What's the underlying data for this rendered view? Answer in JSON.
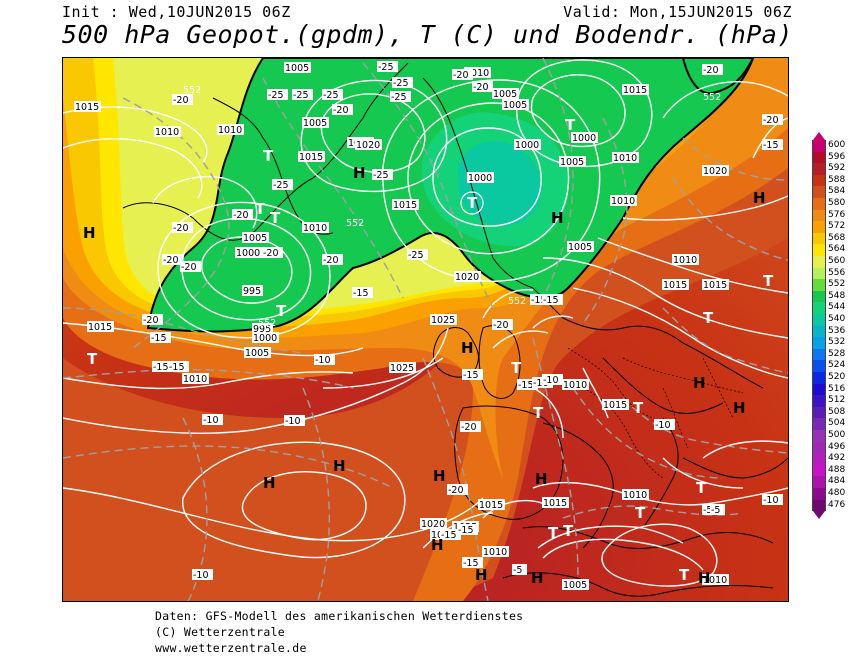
{
  "header": {
    "init": "Init : Wed,10JUN2015 06Z",
    "valid": "Valid: Mon,15JUN2015 06Z",
    "title": "500 hPa Geopot.(gpdm), T (C) und Bodendr. (hPa)"
  },
  "legend": {
    "values": [
      "600",
      "596",
      "592",
      "588",
      "584",
      "580",
      "576",
      "572",
      "568",
      "564",
      "560",
      "556",
      "552",
      "548",
      "544",
      "540",
      "536",
      "532",
      "528",
      "524",
      "520",
      "516",
      "512",
      "508",
      "504",
      "500",
      "496",
      "492",
      "488",
      "484",
      "480",
      "476"
    ],
    "colors": [
      "#c8006e",
      "#b40c28",
      "#b41e28",
      "#c83214",
      "#d2501e",
      "#e66e14",
      "#f08c14",
      "#faa000",
      "#fac800",
      "#ffe600",
      "#e6f050",
      "#b4f05a",
      "#64dc3c",
      "#14c850",
      "#14d278",
      "#0ac8a0",
      "#0ab4c8",
      "#08a0e6",
      "#0a78f0",
      "#0a50f0",
      "#0a28e6",
      "#1e0ad2",
      "#3c14c8",
      "#5a1eb4",
      "#7828b4",
      "#9632b4",
      "#a028b4",
      "#b41ebe",
      "#c814c8",
      "#aa14aa",
      "#8c0a8c",
      "#6e0a6e"
    ]
  },
  "map": {
    "pressure_labels": [
      "1015",
      "1010",
      "1015",
      "1005",
      "1010",
      "1020",
      "1005",
      "1015",
      "1000",
      "1005",
      "995",
      "995",
      "1000",
      "1005",
      "1010",
      "1025",
      "1020",
      "1010",
      "1005",
      "1000",
      "1015",
      "1010",
      "1005",
      "1000",
      "1015",
      "1000",
      "1005",
      "1010",
      "1020",
      "1010",
      "1005",
      "1010",
      "1025",
      "1015",
      "1020",
      "1015",
      "1010",
      "1015",
      "1015",
      "1025",
      "1010",
      "1020",
      "1015",
      "1010",
      "1000",
      "1005",
      "1010"
    ],
    "temp_labels": [
      "-20",
      "-25",
      "-25",
      "-20",
      "-25",
      "-25",
      "-20",
      "-20",
      "-25",
      "-25",
      "-25",
      "-20",
      "-20",
      "-20",
      "-20",
      "-25",
      "-20",
      "-20",
      "-20",
      "-25",
      "-20",
      "-15",
      "-15",
      "-20",
      "-15",
      "-10",
      "-10",
      "-10",
      "-15",
      "-20",
      "-15",
      "-15",
      "-10",
      "-10",
      "-5",
      "-15",
      "-15",
      "-15",
      "-10",
      "-10",
      "-5",
      "-10",
      "-15",
      "-15",
      "-5",
      "-20",
      "-20",
      "-15"
    ],
    "geopot_labels": [
      "552",
      "552",
      "552",
      "552",
      "552"
    ],
    "centers": [
      "T",
      "T",
      "H",
      "T",
      "T",
      "H",
      "T",
      "T",
      "H",
      "T",
      "H",
      "T",
      "T",
      "H",
      "H",
      "H",
      "H",
      "T",
      "H",
      "T",
      "T",
      "H",
      "H",
      "H",
      "T",
      "T",
      "H",
      "T",
      "H",
      "T",
      "T",
      "H"
    ]
  },
  "footer": {
    "line1": "Daten: GFS-Modell des amerikanischen Wetterdienstes",
    "line2": "(C) Wetterzentrale",
    "line3": "www.wetterzentrale.de"
  }
}
